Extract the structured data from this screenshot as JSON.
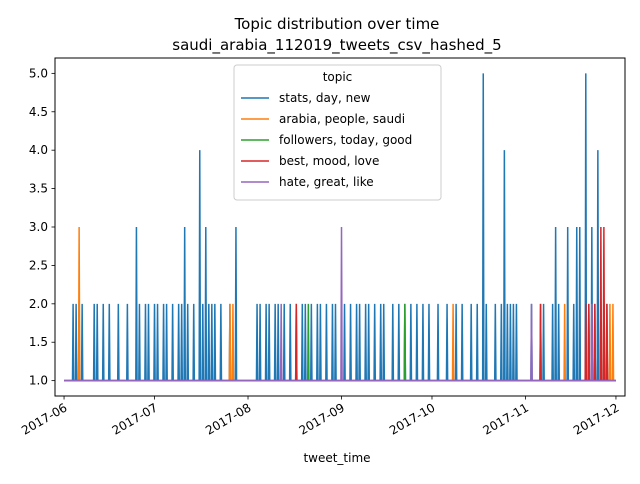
{
  "chart_data": {
    "type": "line",
    "title": "Topic distribution over time",
    "subtitle": "saudi_arabia_112019_tweets_csv_hashed_5",
    "xlabel": "tweet_time",
    "ylabel": "",
    "xlim": [
      "2017-05-29",
      "2017-12-04"
    ],
    "ylim": [
      0.8,
      5.2
    ],
    "x_ticks": [
      "2017-06-01",
      "2017-07-01",
      "2017-08-01",
      "2017-09-01",
      "2017-10-01",
      "2017-11-01",
      "2017-12-01"
    ],
    "x_tick_labels": [
      "2017-06",
      "2017-07",
      "2017-08",
      "2017-09",
      "2017-10",
      "2017-11",
      "2017-12"
    ],
    "y_ticks": [
      1.0,
      1.5,
      2.0,
      2.5,
      3.0,
      3.5,
      4.0,
      4.5,
      5.0
    ],
    "y_tick_labels": [
      "1.0",
      "1.5",
      "2.0",
      "2.5",
      "3.0",
      "3.5",
      "4.0",
      "4.5",
      "5.0"
    ],
    "grid": false,
    "legend": {
      "title": "topic",
      "placement": "top-center"
    },
    "series": [
      {
        "name": "stats, day, new",
        "color": "#1f77b4",
        "baseline": 1,
        "x_range": [
          "2017-06-01",
          "2017-12-01"
        ],
        "spikes": [
          [
            "2017-06-04",
            2
          ],
          [
            "2017-06-05",
            2
          ],
          [
            "2017-06-06",
            2
          ],
          [
            "2017-06-07",
            2
          ],
          [
            "2017-06-11",
            2
          ],
          [
            "2017-06-12",
            2
          ],
          [
            "2017-06-14",
            2
          ],
          [
            "2017-06-16",
            2
          ],
          [
            "2017-06-19",
            2
          ],
          [
            "2017-06-22",
            2
          ],
          [
            "2017-06-25",
            3
          ],
          [
            "2017-06-26",
            2
          ],
          [
            "2017-06-28",
            2
          ],
          [
            "2017-06-29",
            2
          ],
          [
            "2017-07-01",
            2
          ],
          [
            "2017-07-02",
            2
          ],
          [
            "2017-07-04",
            2
          ],
          [
            "2017-07-05",
            2
          ],
          [
            "2017-07-07",
            2
          ],
          [
            "2017-07-09",
            2
          ],
          [
            "2017-07-10",
            2
          ],
          [
            "2017-07-11",
            3
          ],
          [
            "2017-07-12",
            2
          ],
          [
            "2017-07-14",
            2
          ],
          [
            "2017-07-16",
            4
          ],
          [
            "2017-07-17",
            2
          ],
          [
            "2017-07-18",
            3
          ],
          [
            "2017-07-19",
            2
          ],
          [
            "2017-07-20",
            2
          ],
          [
            "2017-07-21",
            2
          ],
          [
            "2017-07-23",
            2
          ],
          [
            "2017-07-26",
            2
          ],
          [
            "2017-07-28",
            3
          ],
          [
            "2017-08-04",
            2
          ],
          [
            "2017-08-05",
            2
          ],
          [
            "2017-08-07",
            2
          ],
          [
            "2017-08-08",
            2
          ],
          [
            "2017-08-10",
            2
          ],
          [
            "2017-08-11",
            2
          ],
          [
            "2017-08-13",
            2
          ],
          [
            "2017-08-15",
            2
          ],
          [
            "2017-08-17",
            2
          ],
          [
            "2017-08-19",
            2
          ],
          [
            "2017-08-20",
            2
          ],
          [
            "2017-08-22",
            2
          ],
          [
            "2017-08-24",
            2
          ],
          [
            "2017-08-25",
            2
          ],
          [
            "2017-08-27",
            2
          ],
          [
            "2017-08-29",
            2
          ],
          [
            "2017-08-30",
            2
          ],
          [
            "2017-09-02",
            2
          ],
          [
            "2017-09-04",
            2
          ],
          [
            "2017-09-06",
            2
          ],
          [
            "2017-09-07",
            2
          ],
          [
            "2017-09-09",
            2
          ],
          [
            "2017-09-10",
            2
          ],
          [
            "2017-09-12",
            2
          ],
          [
            "2017-09-14",
            2
          ],
          [
            "2017-09-15",
            2
          ],
          [
            "2017-09-18",
            2
          ],
          [
            "2017-09-20",
            2
          ],
          [
            "2017-09-22",
            2
          ],
          [
            "2017-09-24",
            2
          ],
          [
            "2017-09-26",
            2
          ],
          [
            "2017-09-28",
            2
          ],
          [
            "2017-09-30",
            2
          ],
          [
            "2017-10-03",
            2
          ],
          [
            "2017-10-06",
            2
          ],
          [
            "2017-10-09",
            2
          ],
          [
            "2017-10-11",
            2
          ],
          [
            "2017-10-14",
            2
          ],
          [
            "2017-10-16",
            2
          ],
          [
            "2017-10-18",
            5
          ],
          [
            "2017-10-19",
            2
          ],
          [
            "2017-10-22",
            2
          ],
          [
            "2017-10-24",
            2
          ],
          [
            "2017-10-25",
            4
          ],
          [
            "2017-10-26",
            2
          ],
          [
            "2017-10-27",
            2
          ],
          [
            "2017-10-28",
            2
          ],
          [
            "2017-10-29",
            2
          ],
          [
            "2017-11-03",
            2
          ],
          [
            "2017-11-07",
            2
          ],
          [
            "2017-11-10",
            2
          ],
          [
            "2017-11-11",
            3
          ],
          [
            "2017-11-12",
            2
          ],
          [
            "2017-11-15",
            3
          ],
          [
            "2017-11-17",
            2
          ],
          [
            "2017-11-18",
            3
          ],
          [
            "2017-11-19",
            3
          ],
          [
            "2017-11-21",
            5
          ],
          [
            "2017-11-22",
            2
          ],
          [
            "2017-11-23",
            3
          ],
          [
            "2017-11-24",
            2
          ],
          [
            "2017-11-25",
            4
          ],
          [
            "2017-11-26",
            2
          ],
          [
            "2017-11-27",
            2
          ],
          [
            "2017-11-28",
            2
          ]
        ]
      },
      {
        "name": "arabia, people, saudi",
        "color": "#ff7f0e",
        "baseline": 1,
        "x_range": [
          "2017-06-01",
          "2017-12-01"
        ],
        "spikes": [
          [
            "2017-06-06",
            3
          ],
          [
            "2017-07-26",
            2
          ],
          [
            "2017-07-27",
            2
          ],
          [
            "2017-10-08",
            2
          ],
          [
            "2017-11-14",
            2
          ],
          [
            "2017-11-27",
            2
          ],
          [
            "2017-11-29",
            2
          ],
          [
            "2017-11-30",
            2
          ]
        ]
      },
      {
        "name": "followers, today, good",
        "color": "#2ca02c",
        "baseline": 1,
        "x_range": [
          "2017-06-01",
          "2017-12-01"
        ],
        "spikes": [
          [
            "2017-08-21",
            2
          ],
          [
            "2017-09-22",
            2
          ],
          [
            "2017-11-06",
            2
          ]
        ]
      },
      {
        "name": "best, mood, love",
        "color": "#d62728",
        "baseline": 1,
        "x_range": [
          "2017-06-01",
          "2017-12-01"
        ],
        "spikes": [
          [
            "2017-08-17",
            2
          ],
          [
            "2017-11-06",
            2
          ],
          [
            "2017-11-21",
            2
          ],
          [
            "2017-11-22",
            2
          ],
          [
            "2017-11-23",
            2
          ],
          [
            "2017-11-24",
            2
          ],
          [
            "2017-11-26",
            3
          ],
          [
            "2017-11-27",
            3
          ],
          [
            "2017-11-28",
            2
          ]
        ]
      },
      {
        "name": "hate, great, like",
        "color": "#9467bd",
        "baseline": 1,
        "x_range": [
          "2017-06-01",
          "2017-12-01"
        ],
        "spikes": [
          [
            "2017-08-12",
            2
          ],
          [
            "2017-09-01",
            3
          ],
          [
            "2017-11-03",
            2
          ],
          [
            "2017-11-23",
            2
          ]
        ]
      }
    ]
  }
}
